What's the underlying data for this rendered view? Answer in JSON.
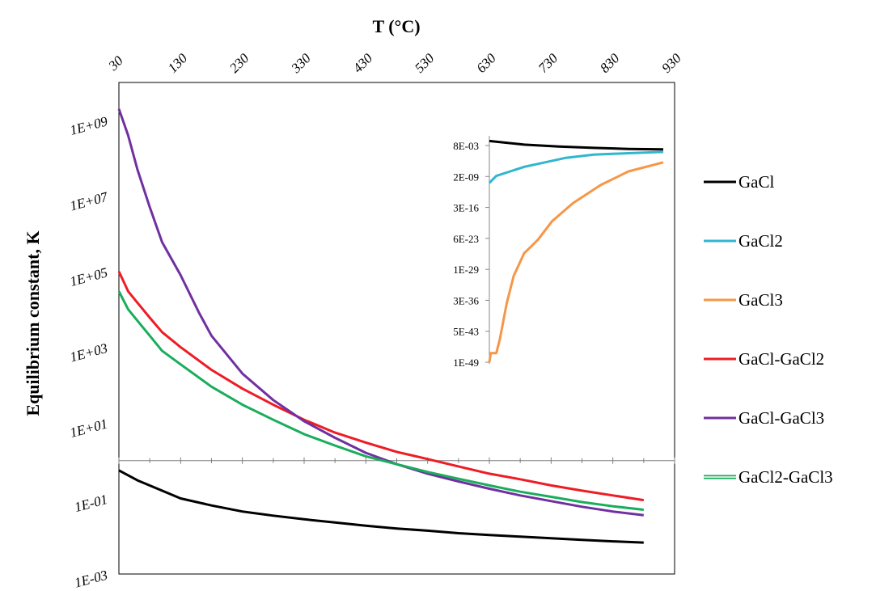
{
  "chart_data": {
    "type": "line",
    "xlabel": "T (°C)",
    "ylabel": "Equilibrium constant, K",
    "y_scale": "log",
    "xlim": [
      30,
      930
    ],
    "ylim": [
      0.001,
      10000000000
    ],
    "x_ticks": [
      "30",
      "130",
      "230",
      "330",
      "430",
      "530",
      "630",
      "730",
      "830",
      "930"
    ],
    "y_tick_labels": [
      "1E+09",
      "1E+07",
      "1E+05",
      "1E+03",
      "1E+01",
      "1E-01",
      "1E-03"
    ],
    "y_tick_values": [
      1000000000,
      10000000,
      100000,
      1000,
      10,
      0.1,
      0.001
    ],
    "x_axis_position": "top",
    "x_axis_crosses_y_at": 1,
    "legend_position": "right",
    "series": [
      {
        "name": "GaCl",
        "color": "#000000",
        "x": [
          30,
          60,
          100,
          130,
          180,
          230,
          280,
          330,
          380,
          430,
          480,
          530,
          580,
          630,
          680,
          730,
          780,
          830,
          880
        ],
        "y": [
          0.55,
          0.3,
          0.16,
          0.1,
          0.065,
          0.045,
          0.035,
          0.028,
          0.023,
          0.019,
          0.016,
          0.014,
          0.012,
          0.0108,
          0.0097,
          0.0088,
          0.008,
          0.0073,
          0.0068
        ]
      },
      {
        "name": "GaCl2",
        "color": "#31b6cf",
        "x": [
          30
        ],
        "y": [
          null
        ]
      },
      {
        "name": "GaCl3",
        "color": "#f79646",
        "x": [
          30
        ],
        "y": [
          null
        ]
      },
      {
        "name": "GaCl-GaCl2",
        "color": "#ee1c24",
        "x": [
          30,
          45,
          60,
          80,
          100,
          130,
          180,
          230,
          280,
          330,
          380,
          430,
          480,
          530,
          580,
          630,
          680,
          730,
          780,
          830,
          880
        ],
        "y": [
          100000,
          30000,
          15000,
          6000,
          2500,
          1000,
          250,
          80,
          30,
          12,
          5.5,
          3,
          1.7,
          1.1,
          0.7,
          0.45,
          0.32,
          0.22,
          0.16,
          0.12,
          0.09
        ]
      },
      {
        "name": "GaCl-GaCl3",
        "color": "#7030a0",
        "x": [
          30,
          45,
          60,
          80,
          100,
          130,
          160,
          180,
          230,
          280,
          330,
          380,
          430,
          480,
          530,
          580,
          630,
          680,
          730,
          780,
          830,
          880
        ],
        "y": [
          2000000000,
          400000000,
          50000000,
          5000000,
          600000,
          80000,
          8000,
          2000,
          200,
          40,
          11,
          4,
          1.6,
          0.8,
          0.45,
          0.28,
          0.18,
          0.12,
          0.085,
          0.06,
          0.045,
          0.036
        ]
      },
      {
        "name": "GaCl2-GaCl3",
        "color": "#1aad5b",
        "x": [
          30,
          45,
          60,
          80,
          100,
          130,
          180,
          230,
          280,
          330,
          380,
          430,
          480,
          530,
          580,
          630,
          680,
          730,
          780,
          830,
          880
        ],
        "y": [
          30000,
          10000,
          5000,
          2000,
          800,
          350,
          90,
          30,
          12,
          5,
          2.5,
          1.3,
          0.8,
          0.5,
          0.33,
          0.22,
          0.15,
          0.11,
          0.08,
          0.062,
          0.05
        ]
      }
    ],
    "inset": {
      "y_scale": "log",
      "y_tick_labels": [
        "8E-03",
        "2E-09",
        "3E-16",
        "6E-23",
        "1E-29",
        "3E-36",
        "5E-43",
        "1E-49"
      ],
      "series": [
        {
          "name": "GaCl",
          "color": "#000000",
          "x": [
            630,
            680,
            730,
            780,
            830,
            880
          ],
          "y": [
            0.5,
            0.08,
            0.03,
            0.015,
            0.009,
            0.007
          ]
        },
        {
          "name": "GaCl2",
          "color": "#31b6cf",
          "x": [
            630,
            640,
            660,
            680,
            710,
            740,
            780,
            830,
            880
          ],
          "y": [
            3e-10,
            1e-08,
            1e-07,
            1e-06,
            1e-05,
            0.0001,
            0.0005,
            0.001,
            0.002
          ]
        },
        {
          "name": "GaCl3",
          "color": "#f79646",
          "x": [
            630,
            632,
            640,
            645,
            655,
            665,
            680,
            690,
            700,
            720,
            750,
            790,
            830,
            880
          ],
          "y": [
            1e-49,
            1e-47,
            1e-47,
            1e-44,
            1e-36,
            1e-30,
            1e-25,
            3e-24,
            1e-22,
            1e-18,
            1e-14,
            1e-10,
            1e-07,
            1e-05
          ]
        }
      ]
    }
  }
}
